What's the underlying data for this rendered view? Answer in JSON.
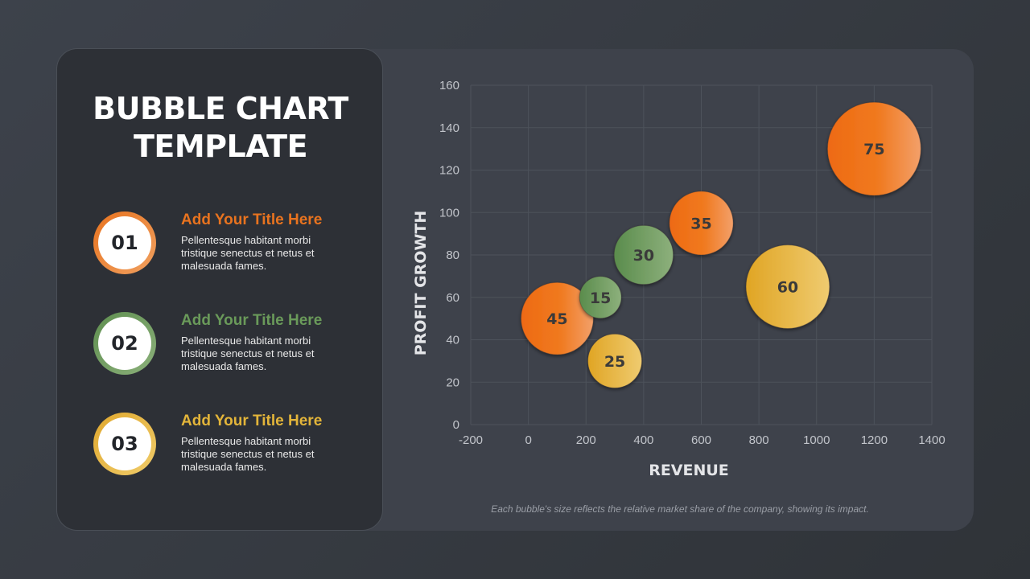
{
  "title_lines": [
    "BUBBLE CHART",
    "TEMPLATE"
  ],
  "items": [
    {
      "number": "01",
      "title": "Add Your Title Here",
      "desc": "Pellentesque habitant morbi tristique senectus et netus et malesuada fames.",
      "color": "#e8731f"
    },
    {
      "number": "02",
      "title": "Add Your Title Here",
      "desc": "Pellentesque habitant morbi tristique senectus et netus et malesuada fames.",
      "color": "#6a9a5a"
    },
    {
      "number": "03",
      "title": "Add Your Title Here",
      "desc": "Pellentesque habitant morbi tristique senectus et netus et malesuada fames.",
      "color": "#e3b53a"
    }
  ],
  "footnote": "Each bubble's size reflects the relative market share of the company, showing its impact.",
  "colors": {
    "orange": "#e8731f",
    "green": "#6a9a5a",
    "yellow": "#e3b53a"
  },
  "chart_data": {
    "type": "bubble",
    "xlabel": "REVENUE",
    "ylabel": "PROFIT GROWTH",
    "xlim": [
      -200,
      1400
    ],
    "ylim": [
      0,
      160
    ],
    "xticks": [
      -200,
      0,
      200,
      400,
      600,
      800,
      1000,
      1200,
      1400
    ],
    "yticks": [
      0,
      20,
      40,
      60,
      80,
      100,
      120,
      140,
      160
    ],
    "grid": true,
    "points": [
      {
        "x": 100,
        "y": 50,
        "size": 45,
        "label": "45",
        "color": "orange"
      },
      {
        "x": 250,
        "y": 60,
        "size": 15,
        "label": "15",
        "color": "green"
      },
      {
        "x": 300,
        "y": 30,
        "size": 25,
        "label": "25",
        "color": "yellow"
      },
      {
        "x": 400,
        "y": 80,
        "size": 30,
        "label": "30",
        "color": "green"
      },
      {
        "x": 600,
        "y": 95,
        "size": 35,
        "label": "35",
        "color": "orange"
      },
      {
        "x": 900,
        "y": 65,
        "size": 60,
        "label": "60",
        "color": "yellow"
      },
      {
        "x": 1200,
        "y": 130,
        "size": 75,
        "label": "75",
        "color": "orange"
      }
    ]
  }
}
